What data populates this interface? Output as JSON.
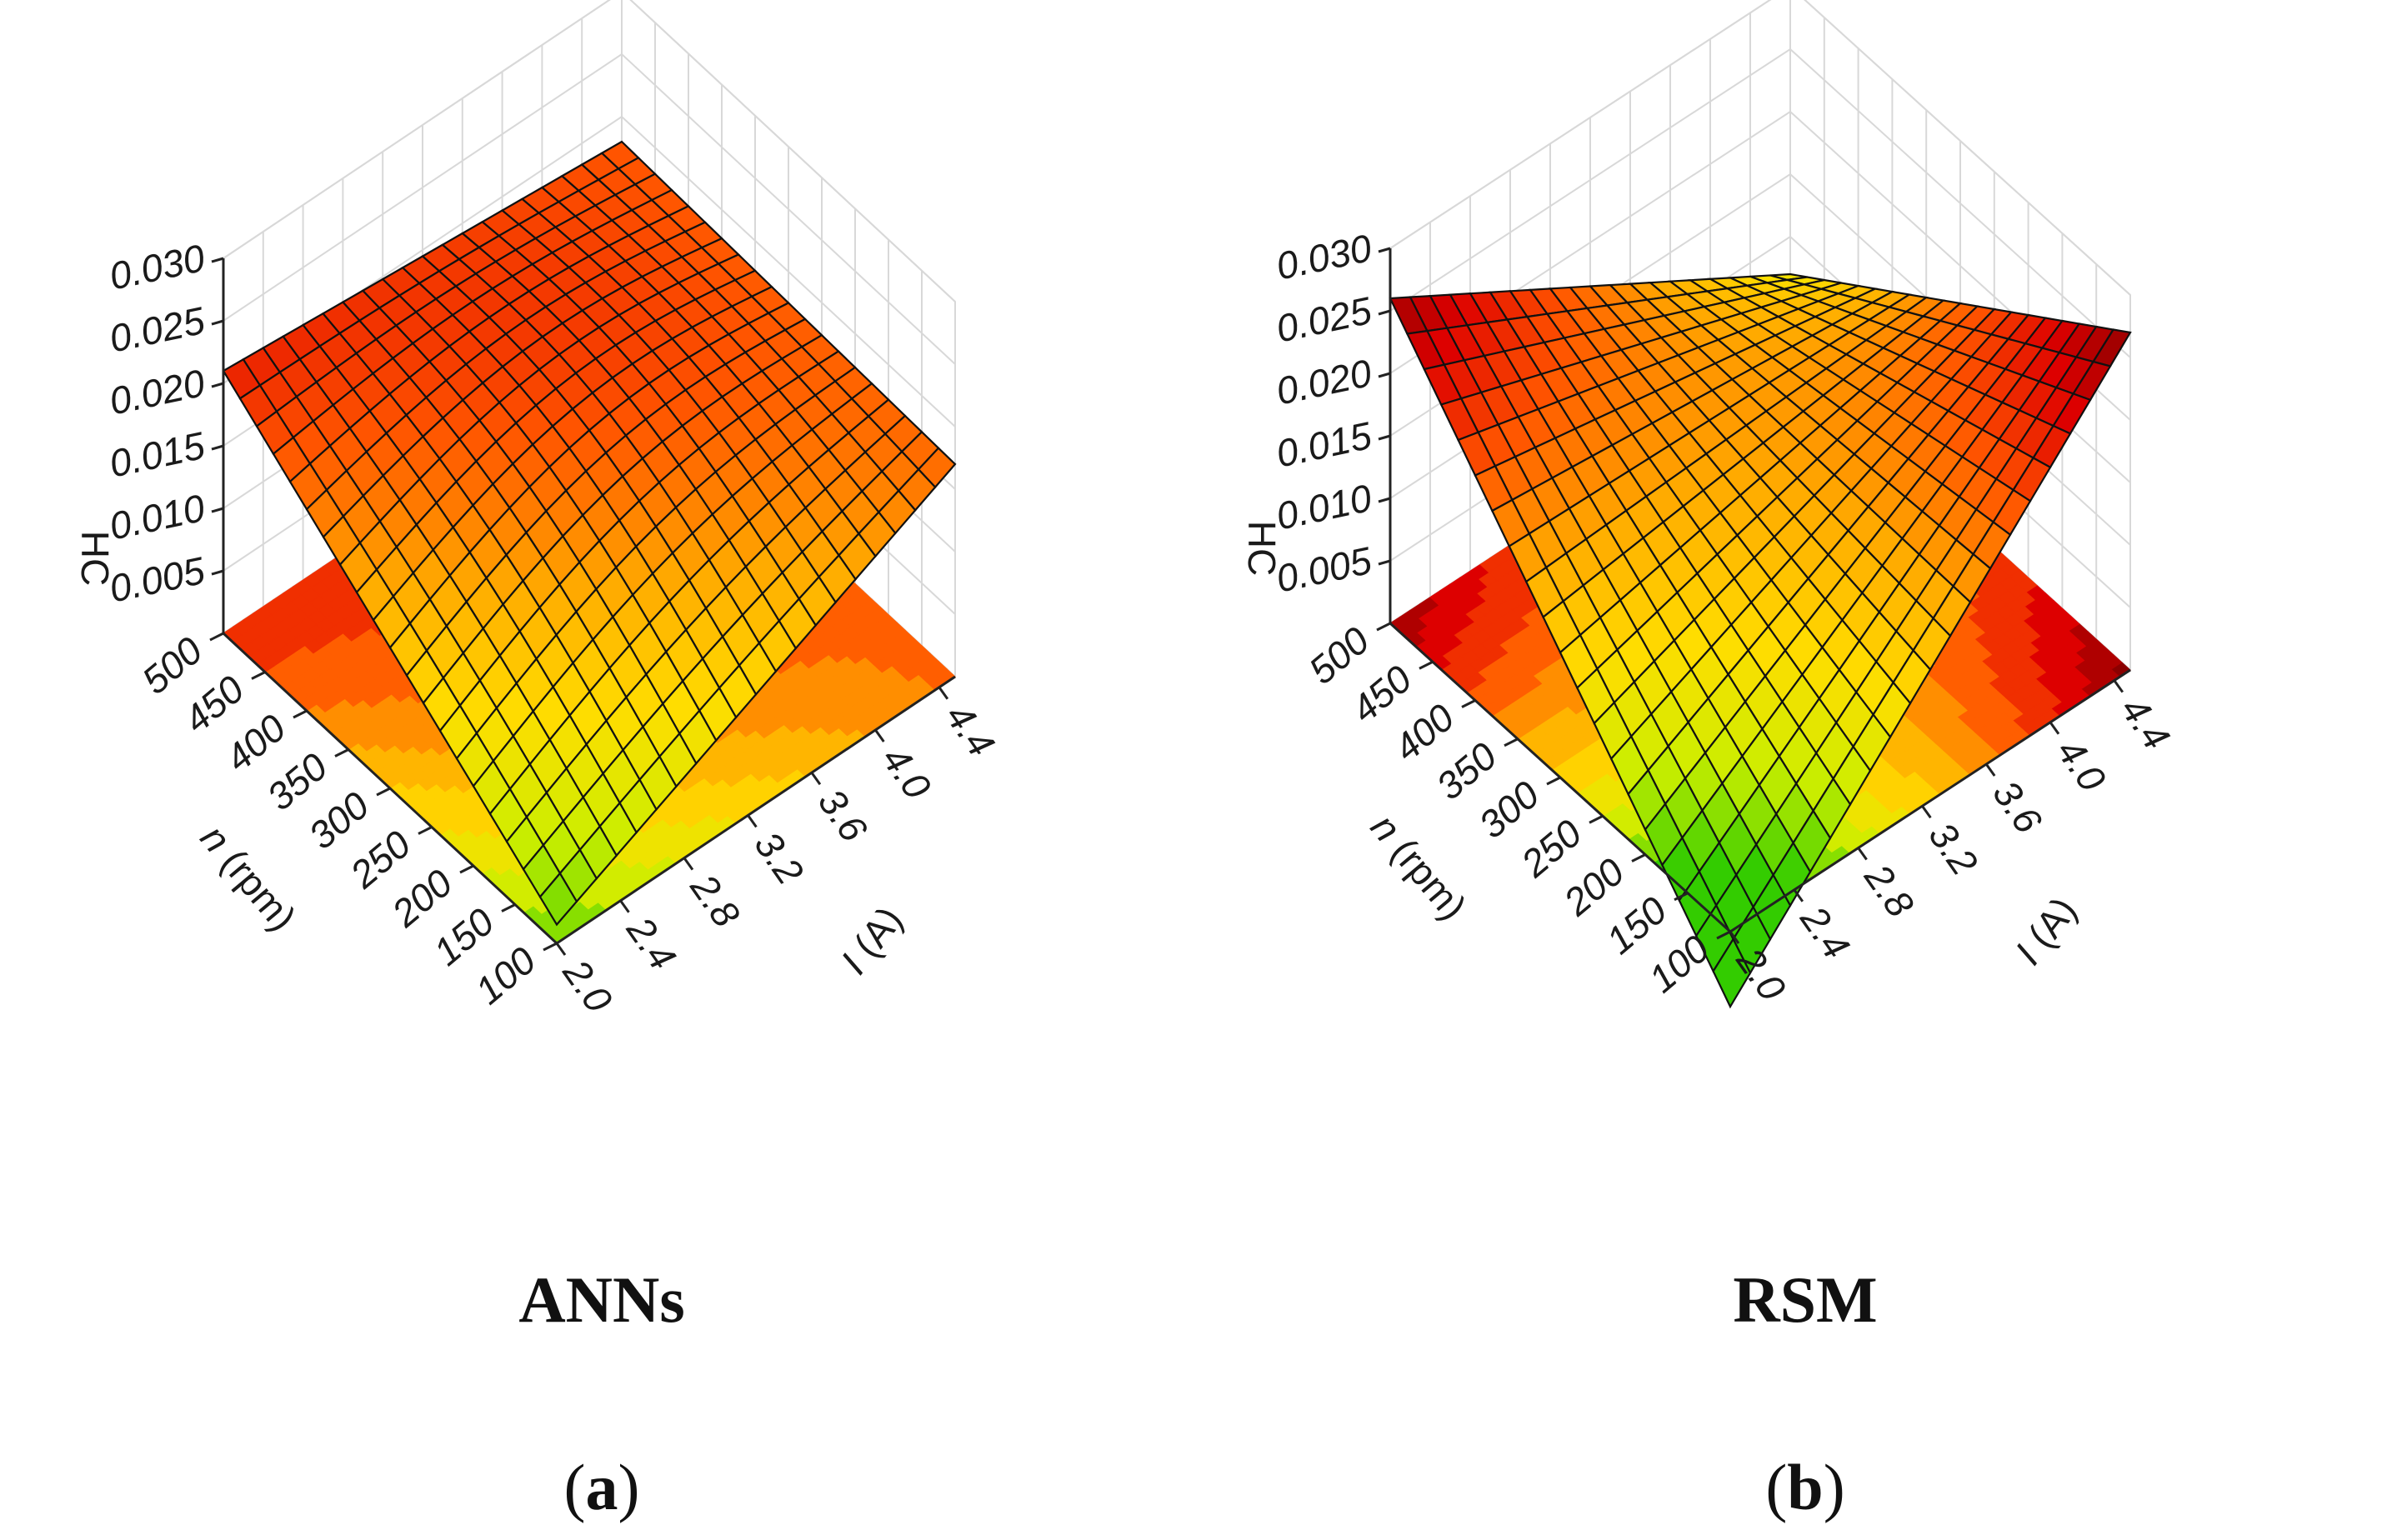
{
  "chart_data": [
    {
      "id": "a",
      "type": "surface3d",
      "title": "ANNs",
      "panel_label": "a",
      "zlabel": "HC",
      "ylabel_var": "n",
      "ylabel_unit": " (rpm)",
      "xlabel_var": "I",
      "xlabel_unit": " (A)",
      "x_ticks": [
        "2.0",
        "2.4",
        "2.8",
        "3.2",
        "3.6",
        "4.0",
        "4.4"
      ],
      "y_ticks": [
        "100",
        "150",
        "200",
        "250",
        "300",
        "350",
        "400",
        "450",
        "500"
      ],
      "z_ticks": [
        "0.005",
        "0.010",
        "0.015",
        "0.020",
        "0.025",
        "0.030"
      ],
      "xlim": [
        2.0,
        4.5
      ],
      "ylim": [
        100,
        500
      ],
      "zlim": [
        0.0,
        0.03
      ],
      "corner_values": {
        "I_2.0_n_100": 0.0015,
        "I_2.0_n_500": 0.021,
        "I_4.5_n_500": 0.018,
        "I_4.5_n_100": 0.017
      },
      "colormap": [
        "#33cc00",
        "#ccee00",
        "#ffdd00",
        "#ffaa00",
        "#ff5500",
        "#dd0000",
        "#8b0000"
      ]
    },
    {
      "id": "b",
      "type": "surface3d",
      "title": "RSM",
      "panel_label": "b",
      "zlabel": "HC",
      "ylabel_var": "n",
      "ylabel_unit": " (rpm)",
      "xlabel_var": "I",
      "xlabel_unit": " (A)",
      "x_ticks": [
        "2.0",
        "2.4",
        "2.8",
        "3.2",
        "3.6",
        "4.0",
        "4.4"
      ],
      "y_ticks": [
        "100",
        "150",
        "200",
        "250",
        "300",
        "350",
        "400",
        "450",
        "500"
      ],
      "z_ticks": [
        "0.005",
        "0.010",
        "0.015",
        "0.020",
        "0.025",
        "0.030"
      ],
      "xlim": [
        2.0,
        4.5
      ],
      "ylim": [
        100,
        500
      ],
      "zlim": [
        0.0,
        0.03
      ],
      "corner_values": {
        "I_2.0_n_100": -0.006,
        "I_2.0_n_500": 0.026,
        "I_4.5_n_500": 0.007,
        "I_4.5_n_100": 0.027
      },
      "colormap": [
        "#33cc00",
        "#ccee00",
        "#ffdd00",
        "#ffaa00",
        "#ff5500",
        "#dd0000",
        "#8b0000"
      ]
    }
  ]
}
